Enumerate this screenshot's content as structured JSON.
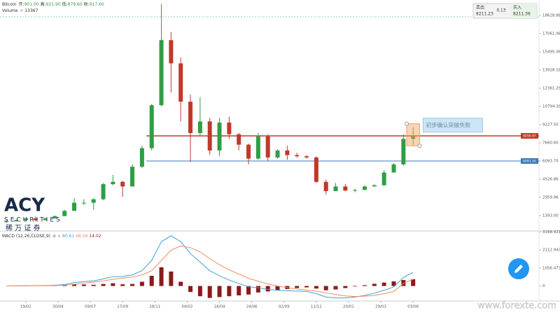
{
  "chart_data": {
    "type": "candlestick",
    "title": "Bitcoin",
    "ohlc_legend": [
      {
        "label": "开:",
        "value": "901.00"
      },
      {
        "label": "高:",
        "value": "921.90"
      },
      {
        "label": "低:",
        "value": "879.60"
      },
      {
        "label": "收:",
        "value": "917.60"
      }
    ],
    "volume_label": "Volume",
    "volume_value": "13367",
    "x": [
      -6,
      -3,
      0,
      3,
      6,
      9,
      12,
      15,
      18,
      21,
      24,
      27,
      30,
      33,
      36,
      39,
      42,
      45,
      48,
      51,
      54,
      57,
      60,
      63,
      66,
      69,
      72,
      75,
      78,
      81,
      84,
      87,
      90,
      93,
      96,
      99,
      102,
      105,
      108,
      111,
      114,
      117,
      120
    ],
    "open": [
      900,
      900,
      1000,
      1150,
      1000,
      1150,
      1350,
      1800,
      2500,
      2500,
      2800,
      4100,
      4300,
      3900,
      5600,
      7200,
      10900,
      16500,
      14500,
      11200,
      8500,
      9500,
      7000,
      9400,
      8400,
      7500,
      6300,
      8200,
      6400,
      7000,
      6600,
      6500,
      6400,
      4300,
      3500,
      3900,
      3550,
      3600,
      3900,
      4000,
      5100,
      5800,
      8000
    ],
    "high": [
      1000,
      1050,
      1200,
      1300,
      1200,
      1400,
      1900,
      2900,
      2800,
      2900,
      4200,
      4900,
      4400,
      5800,
      7400,
      11000,
      19600,
      17200,
      15000,
      11800,
      11600,
      9800,
      9800,
      9900,
      8500,
      7600,
      8500,
      8400,
      7100,
      7400,
      6800,
      6600,
      6500,
      4500,
      4200,
      4100,
      3700,
      4000,
      4100,
      5300,
      5900,
      8400,
      9000
    ],
    "low": [
      750,
      900,
      950,
      900,
      1000,
      1150,
      1350,
      1800,
      2300,
      1900,
      2700,
      4000,
      3000,
      3900,
      5500,
      7000,
      10800,
      12000,
      9500,
      6000,
      8300,
      6600,
      6500,
      8000,
      7000,
      5800,
      6200,
      6100,
      6300,
      6200,
      6400,
      6300,
      4200,
      3200,
      3500,
      3500,
      3400,
      3600,
      3900,
      4000,
      5100,
      5700,
      7500
    ],
    "close": [
      900,
      1000,
      1150,
      1000,
      1150,
      1350,
      1800,
      2500,
      2500,
      2800,
      4100,
      4300,
      3900,
      5600,
      7200,
      10900,
      16500,
      14500,
      11200,
      8500,
      9500,
      7000,
      9400,
      8400,
      7500,
      6300,
      8200,
      6400,
      7000,
      6600,
      6500,
      6400,
      4300,
      3500,
      3900,
      3550,
      3600,
      3900,
      4000,
      5100,
      5800,
      8000,
      8200
    ],
    "up_color": "#2f9e44",
    "down_color": "#c0392b",
    "xlim": [
      -8,
      159
    ],
    "xticks": [
      {
        "value": 0,
        "label": "19/02"
      },
      {
        "value": 10,
        "label": "30/04"
      },
      {
        "value": 20,
        "label": "09/07"
      },
      {
        "value": 30,
        "label": "17/09"
      },
      {
        "value": 40,
        "label": "28/11"
      },
      {
        "value": 50,
        "label": "04/02"
      },
      {
        "value": 60,
        "label": "18/04"
      },
      {
        "value": 70,
        "label": "24/06"
      },
      {
        "value": 80,
        "label": "02/09"
      },
      {
        "value": 90,
        "label": "11/11"
      },
      {
        "value": 100,
        "label": "20/01"
      },
      {
        "value": 110,
        "label": "29/03"
      },
      {
        "value": 120,
        "label": "03/06"
      }
    ],
    "ylim": [
      67,
      19352
    ],
    "yticks": [
      {
        "value": 1393,
        "label": "1393.00"
      },
      2959.96,
      4526.86,
      {
        "value": 6093.7,
        "label": "6093.70"
      },
      {
        "value": 7660.6,
        "label": "7660.60"
      },
      {
        "value": 9227.5,
        "label": "9227.50"
      },
      10794.39,
      12361.29,
      13928.18,
      15495.08,
      17061.98,
      18628.88
    ],
    "hlines": [
      {
        "value": 8256.67,
        "color": "#c0392b"
      },
      {
        "value": 6091.55,
        "color": "#3b7ab8"
      }
    ],
    "annotation": {
      "text": "初步确认突破失败",
      "x0": 118,
      "x1": 122,
      "y0": 9300,
      "y1": 7400
    },
    "macd": {
      "name": "MACD (12,26,CLOSE,9)",
      "legend_values": [
        80.61,
        66.59,
        14.02
      ],
      "macd": [
        5,
        10,
        20,
        25,
        30,
        45,
        90,
        200,
        260,
        300,
        420,
        550,
        560,
        650,
        900,
        1500,
        2600,
        2950,
        2600,
        1900,
        1400,
        900,
        600,
        350,
        150,
        -50,
        -100,
        -200,
        -250,
        -280,
        -300,
        -320,
        -450,
        -650,
        -700,
        -700,
        -650,
        -550,
        -420,
        -250,
        -50,
        500,
        800
      ],
      "signal": [
        5,
        8,
        12,
        18,
        22,
        30,
        50,
        100,
        170,
        230,
        300,
        390,
        460,
        530,
        650,
        900,
        1500,
        2100,
        2350,
        2250,
        2000,
        1600,
        1250,
        950,
        700,
        450,
        280,
        120,
        0,
        -100,
        -180,
        -240,
        -300,
        -400,
        -500,
        -580,
        -620,
        -600,
        -550,
        -450,
        -320,
        150,
        400
      ],
      "hist": [
        0,
        2,
        8,
        7,
        8,
        15,
        40,
        100,
        90,
        70,
        120,
        160,
        100,
        120,
        250,
        600,
        1100,
        850,
        250,
        -350,
        -600,
        -700,
        -650,
        -600,
        -550,
        -500,
        -380,
        -320,
        -250,
        -180,
        -120,
        -80,
        -150,
        -250,
        -200,
        -120,
        -30,
        50,
        130,
        200,
        270,
        350,
        400
      ],
      "macd_color": "#3fa0dc",
      "signal_color": "#f08a5d",
      "hist_color": "#8b1a1a",
      "ylim": [
        -880,
        3228
      ],
      "yticks": [
        3168.4216,
        2112.9477,
        1056.4739,
        0
      ]
    }
  },
  "quote": {
    "sell_label": "卖出",
    "sell": "8211.23",
    "spread": "0.13",
    "buy_label": "买入",
    "buy": "8211.36"
  },
  "logo": {
    "mark": "ACY",
    "name": "SECURITIES",
    "cn": "稀 万 证 券"
  },
  "watermark": "www.forexte.com"
}
